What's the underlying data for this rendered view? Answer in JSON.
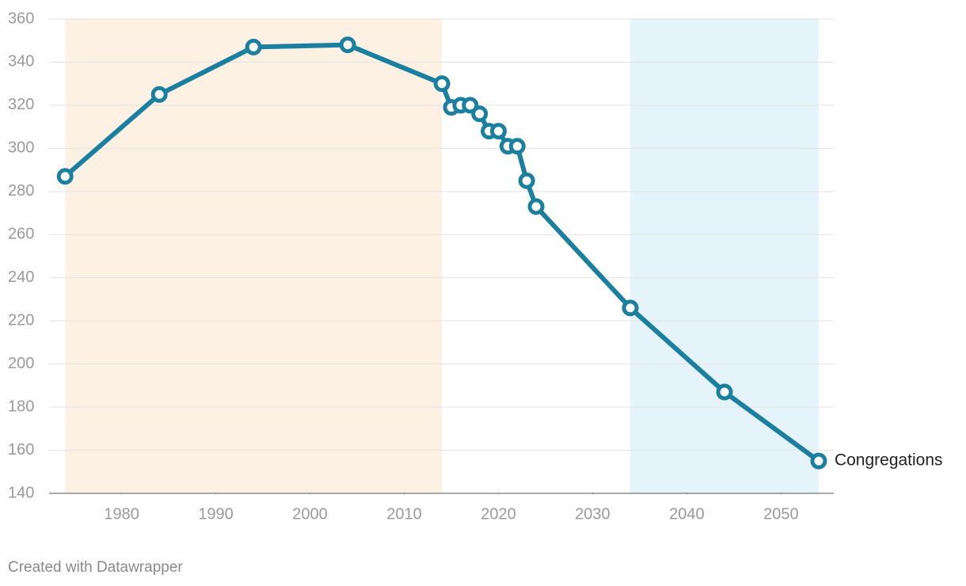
{
  "chart_data": {
    "type": "line",
    "x": [
      1974,
      1984,
      1994,
      2004,
      2014,
      2015,
      2016,
      2017,
      2018,
      2019,
      2020,
      2021,
      2022,
      2023,
      2024,
      2034,
      2044,
      2054
    ],
    "series": [
      {
        "name": "Congregations",
        "color": "#1b7fa0",
        "values": [
          287,
          325,
          347,
          348,
          330,
          319,
          320,
          320,
          316,
          308,
          308,
          301,
          301,
          285,
          273,
          226,
          187,
          155
        ]
      }
    ],
    "bands": [
      {
        "start": 1974,
        "end": 2014,
        "color": "#fdf1e3"
      },
      {
        "start": 2034,
        "end": 2054,
        "color": "#e5f3fa"
      }
    ],
    "xlim": [
      1972.3,
      2055.6
    ],
    "xticks": [
      1980,
      1990,
      2000,
      2010,
      2020,
      2030,
      2040,
      2050
    ],
    "ylim": [
      140,
      360
    ],
    "yticks": [
      140,
      160,
      180,
      200,
      220,
      240,
      260,
      280,
      300,
      320,
      340,
      360
    ],
    "grid": true
  },
  "footer": "Created with Datawrapper"
}
